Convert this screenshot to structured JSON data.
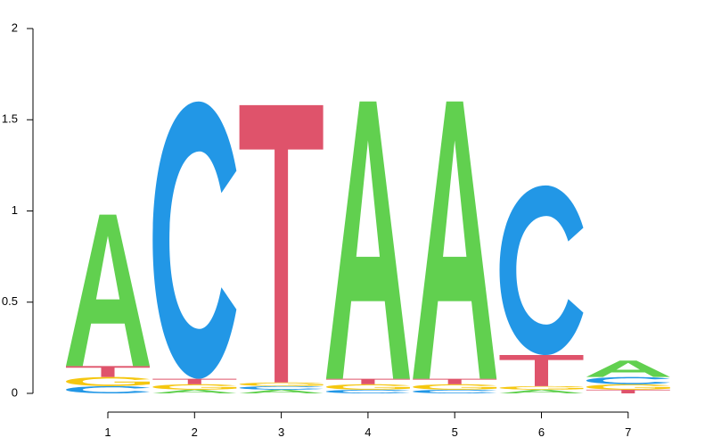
{
  "chart_data": {
    "type": "sequence-logo",
    "title": "",
    "xlabel": "",
    "ylabel": "",
    "ylim": [
      0,
      2
    ],
    "y_ticks": [
      "0",
      "0.5",
      "1",
      "1.5",
      "2"
    ],
    "y_tick_values": [
      0,
      0.5,
      1,
      1.5,
      2
    ],
    "x_ticks": [
      "1",
      "2",
      "3",
      "4",
      "5",
      "6",
      "7"
    ],
    "colors": {
      "A": "#61d04f",
      "C": "#2297e6",
      "G": "#f5c710",
      "T": "#df536b"
    },
    "positions": [
      {
        "x": 1,
        "letters": [
          {
            "letter": "C",
            "height": 0.04
          },
          {
            "letter": "G",
            "height": 0.05
          },
          {
            "letter": "T",
            "height": 0.06
          },
          {
            "letter": "A",
            "height": 0.83
          }
        ]
      },
      {
        "x": 2,
        "letters": [
          {
            "letter": "A",
            "height": 0.02
          },
          {
            "letter": "G",
            "height": 0.03
          },
          {
            "letter": "T",
            "height": 0.03
          },
          {
            "letter": "C",
            "height": 1.52
          }
        ]
      },
      {
        "x": 3,
        "letters": [
          {
            "letter": "A",
            "height": 0.02
          },
          {
            "letter": "C",
            "height": 0.02
          },
          {
            "letter": "G",
            "height": 0.02
          },
          {
            "letter": "T",
            "height": 1.52
          }
        ]
      },
      {
        "x": 4,
        "letters": [
          {
            "letter": "C",
            "height": 0.02
          },
          {
            "letter": "G",
            "height": 0.03
          },
          {
            "letter": "T",
            "height": 0.03
          },
          {
            "letter": "A",
            "height": 1.52
          }
        ]
      },
      {
        "x": 5,
        "letters": [
          {
            "letter": "C",
            "height": 0.02
          },
          {
            "letter": "G",
            "height": 0.03
          },
          {
            "letter": "T",
            "height": 0.03
          },
          {
            "letter": "A",
            "height": 1.52
          }
        ]
      },
      {
        "x": 6,
        "letters": [
          {
            "letter": "A",
            "height": 0.02
          },
          {
            "letter": "G",
            "height": 0.02
          },
          {
            "letter": "T",
            "height": 0.17
          },
          {
            "letter": "C",
            "height": 0.93
          }
        ]
      },
      {
        "x": 7,
        "letters": [
          {
            "letter": "T",
            "height": 0.02
          },
          {
            "letter": "G",
            "height": 0.03
          },
          {
            "letter": "C",
            "height": 0.04
          },
          {
            "letter": "A",
            "height": 0.09
          }
        ]
      }
    ]
  }
}
